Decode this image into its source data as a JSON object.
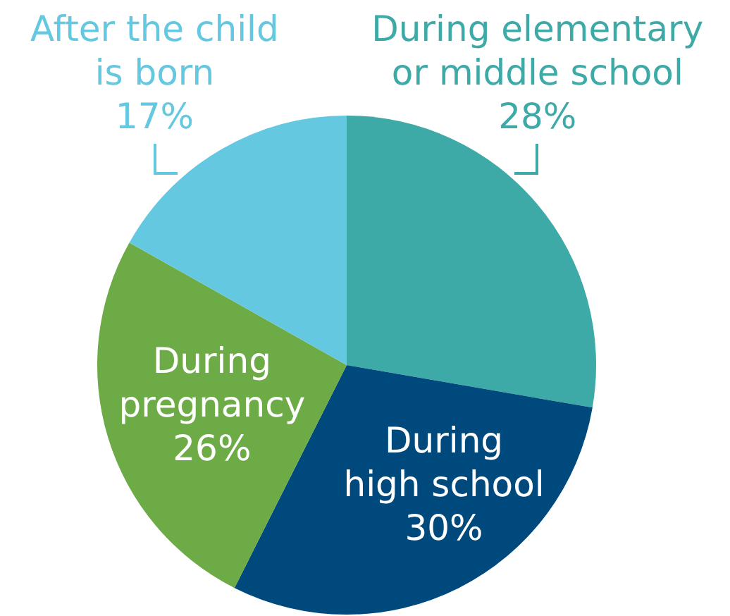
{
  "chart_data": {
    "type": "pie",
    "categories": [
      "During elementary or middle school",
      "During high school",
      "During pregnancy",
      "After the child is born"
    ],
    "values": [
      28,
      30,
      26,
      17
    ],
    "colors": [
      "#3eaaa8",
      "#00497d",
      "#6dab47",
      "#63c8e0"
    ],
    "value_labels": [
      "28%",
      "30%",
      "26%",
      "17%"
    ]
  }
}
